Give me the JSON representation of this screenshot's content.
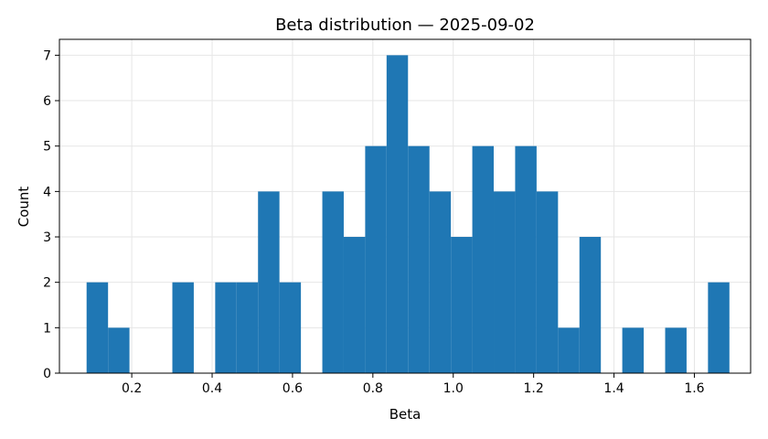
{
  "chart_data": {
    "type": "bar",
    "title": "Beta distribution — 2025-09-02",
    "xlabel": "Beta",
    "ylabel": "Count",
    "xlim": [
      0.02,
      1.74
    ],
    "ylim": [
      0,
      7.35
    ],
    "grid": true,
    "bar_color": "#1f77b4",
    "x_ticks": [
      0.2,
      0.4,
      0.6,
      0.8,
      1.0,
      1.2,
      1.4,
      1.6
    ],
    "x_tick_labels": [
      "0.2",
      "0.4",
      "0.6",
      "0.8",
      "1.0",
      "1.2",
      "1.4",
      "1.6"
    ],
    "y_ticks": [
      0,
      1,
      2,
      3,
      4,
      5,
      6,
      7
    ],
    "y_tick_labels": [
      "0",
      "1",
      "2",
      "3",
      "4",
      "5",
      "6",
      "7"
    ],
    "bins": [
      {
        "x0": 0.0876,
        "x1": 0.141,
        "count": 2
      },
      {
        "x0": 0.141,
        "x1": 0.1943,
        "count": 1
      },
      {
        "x0": 0.301,
        "x1": 0.3543,
        "count": 2
      },
      {
        "x0": 0.4076,
        "x1": 0.4609,
        "count": 2
      },
      {
        "x0": 0.4609,
        "x1": 0.5142,
        "count": 2
      },
      {
        "x0": 0.5142,
        "x1": 0.5675,
        "count": 4
      },
      {
        "x0": 0.5675,
        "x1": 0.6209,
        "count": 2
      },
      {
        "x0": 0.6742,
        "x1": 0.7275,
        "count": 4
      },
      {
        "x0": 0.7275,
        "x1": 0.7808,
        "count": 3
      },
      {
        "x0": 0.7808,
        "x1": 0.8341,
        "count": 5
      },
      {
        "x0": 0.8341,
        "x1": 0.8874,
        "count": 7
      },
      {
        "x0": 0.8874,
        "x1": 0.9408,
        "count": 5
      },
      {
        "x0": 0.9408,
        "x1": 0.9941,
        "count": 4
      },
      {
        "x0": 0.9941,
        "x1": 1.0474,
        "count": 3
      },
      {
        "x0": 1.0474,
        "x1": 1.1007,
        "count": 5
      },
      {
        "x0": 1.1007,
        "x1": 1.154,
        "count": 4
      },
      {
        "x0": 1.154,
        "x1": 1.2074,
        "count": 5
      },
      {
        "x0": 1.2074,
        "x1": 1.2607,
        "count": 4
      },
      {
        "x0": 1.2607,
        "x1": 1.314,
        "count": 1
      },
      {
        "x0": 1.314,
        "x1": 1.3673,
        "count": 3
      },
      {
        "x0": 1.4206,
        "x1": 1.474,
        "count": 1
      },
      {
        "x0": 1.5273,
        "x1": 1.5806,
        "count": 1
      },
      {
        "x0": 1.6339,
        "x1": 1.6872,
        "count": 2
      }
    ]
  }
}
